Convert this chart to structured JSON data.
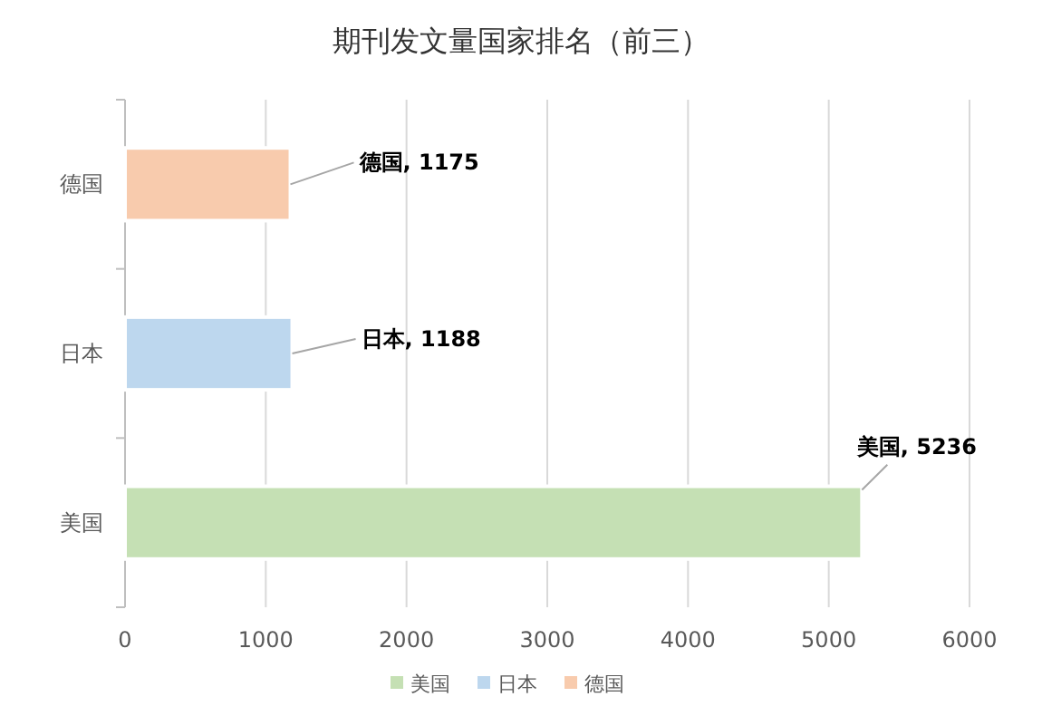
{
  "chart_data": {
    "type": "bar",
    "orientation": "horizontal",
    "title": "期刊发文量国家排名（前三）",
    "categories": [
      "德国",
      "日本",
      "美国"
    ],
    "series": [
      {
        "name": "美国",
        "color": "#c5e0b4",
        "values": [
          null,
          null,
          5236
        ],
        "value_labels": [
          null,
          null,
          "美国, 5236"
        ]
      },
      {
        "name": "日本",
        "color": "#bdd7ee",
        "values": [
          null,
          1188,
          null
        ],
        "value_labels": [
          null,
          "日本, 1188",
          null
        ]
      },
      {
        "name": "德国",
        "color": "#f8cbad",
        "values": [
          1175,
          null,
          null
        ],
        "value_labels": [
          "德国, 1175",
          null,
          null
        ]
      }
    ],
    "xlim": [
      0,
      6000
    ],
    "xticks": [
      0,
      1000,
      2000,
      3000,
      4000,
      5000,
      6000
    ],
    "grid": "x",
    "legend": "bottom"
  }
}
